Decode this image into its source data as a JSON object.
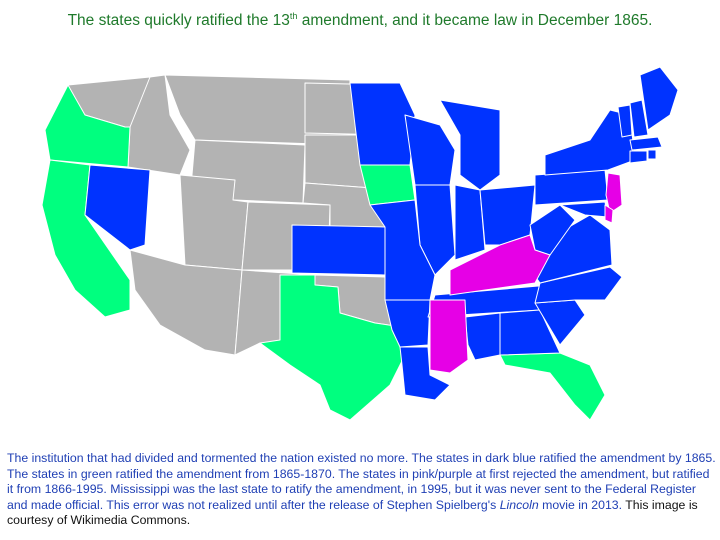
{
  "title": {
    "before": "The states quickly ratified the 13",
    "sup": "th",
    "after": " amendment, and it became law in December 1865."
  },
  "caption": {
    "part1": "The institution that had divided and tormented the nation existed no more. The states in dark blue ratified the amendment by 1865. The states in green ratified the amendment from 1865-1870. The states in pink/purple at first rejected the amendment, but ratified it from 1866-1995. Mississippi was the last state to ratify the amendment, in 1995, but it was never sent to the Federal Register and made official. This error was not realized until after the release of Stephen Spielberg's ",
    "italic": "Lincoln",
    "part2": " movie in 2013.",
    "credit": " This image is courtesy of Wikimedia Commons."
  },
  "colors": {
    "ratified_by_1865": "#0033ff",
    "ratified_1865_1870": "#00ff7f",
    "rejected_then_ratified": "#e600e6",
    "not_a_state": "#b3b3b3",
    "title_text": "#1f7a2b",
    "caption_text": "#1f3fb4"
  }
}
